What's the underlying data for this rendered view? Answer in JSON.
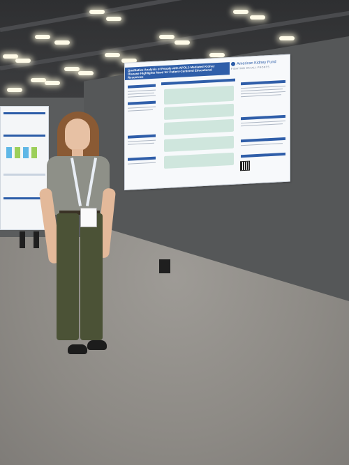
{
  "poster": {
    "title": "Qualitative Analysis of People with APOL1-Mediated Kidney Disease Highlights Need for Patient-Centered Educational Resources",
    "logo": "American Kidney Fund",
    "tagline": "FIGHTING ON ALL FRONTS"
  },
  "colors": {
    "poster_accent": "#2f5ea9",
    "board": "#555758",
    "carpet": "#8f8d88",
    "pants": "#4b5236"
  }
}
